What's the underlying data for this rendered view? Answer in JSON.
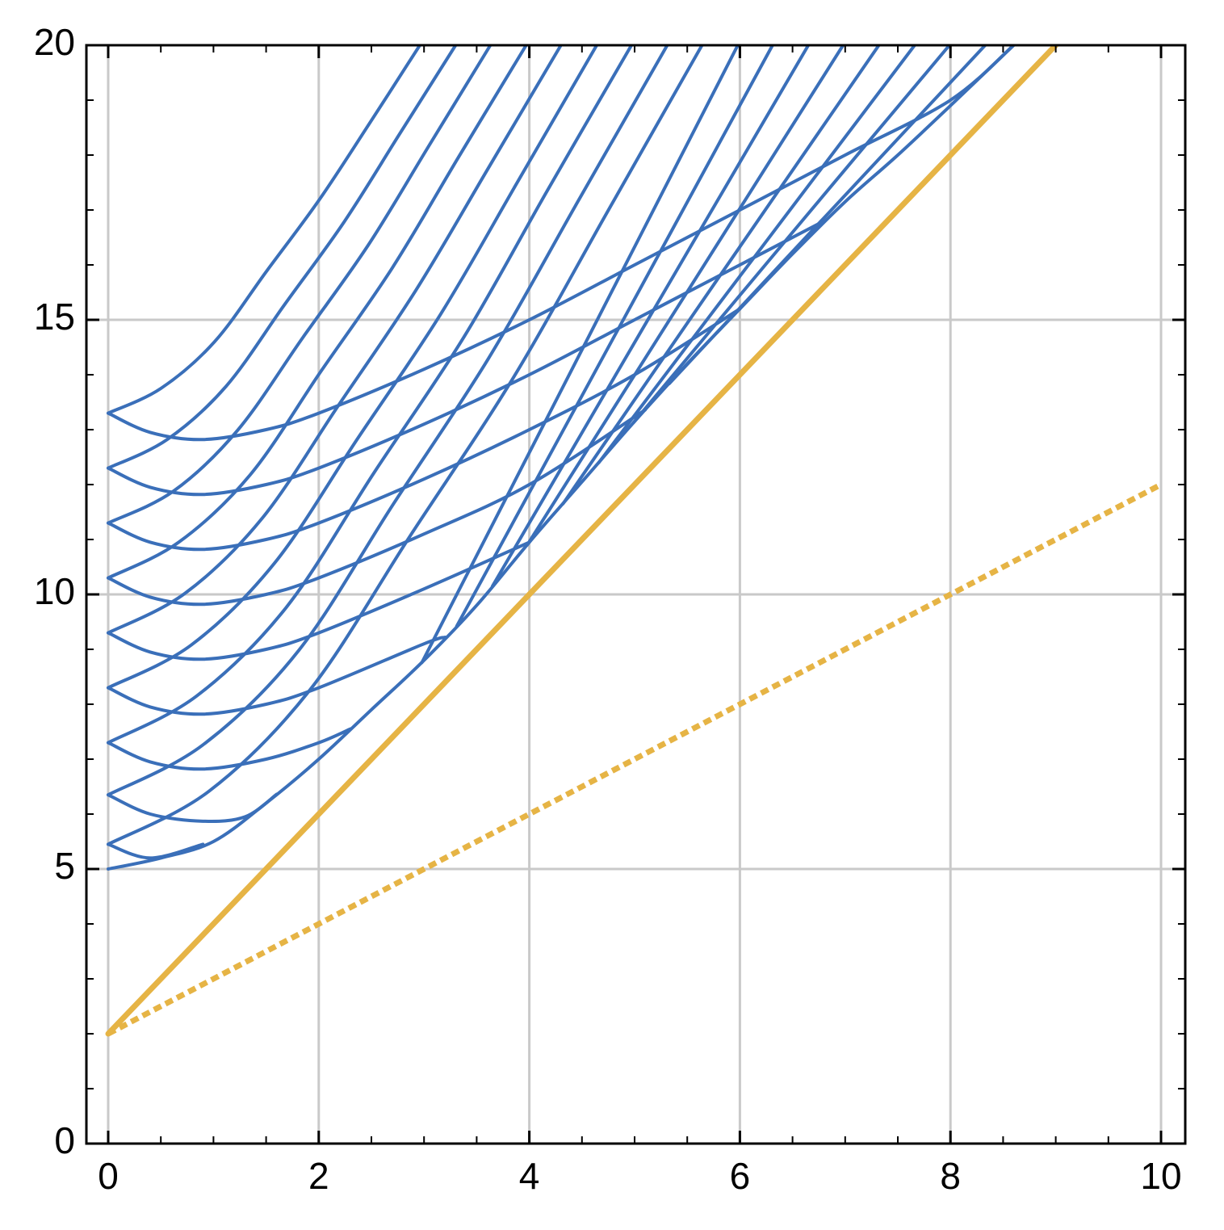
{
  "chart_data": {
    "type": "line",
    "xlim": [
      -0.207,
      10.23
    ],
    "ylim": [
      0,
      20
    ],
    "xticks": [
      0,
      2,
      4,
      6,
      8,
      10
    ],
    "yticks": [
      0,
      5,
      10,
      15,
      20
    ],
    "xminorticks": [
      0.5,
      1,
      1.5,
      2.5,
      3,
      3.5,
      4.5,
      5,
      5.5,
      6.5,
      7,
      7.5,
      8.5,
      9,
      9.5
    ],
    "yminorticks": [
      1,
      2,
      3,
      4,
      6,
      7,
      8,
      9,
      11,
      12,
      13,
      14,
      16,
      17,
      18,
      19
    ],
    "grid": true,
    "series": [
      {
        "color": "#3a6fb9",
        "x": [
          0,
          0.4,
          0.9,
          1.5,
          2,
          3,
          4,
          5,
          6,
          7,
          8,
          8.6
        ],
        "values": [
          13.3,
          12.95,
          12.82,
          13,
          13.3,
          14.1,
          15,
          16,
          17,
          18,
          19,
          20
        ]
      },
      {
        "color": "#3a6fb9",
        "x": [
          0,
          0.4,
          0.9,
          1.5,
          2,
          3,
          4,
          5,
          6,
          6.8
        ],
        "values": [
          12.3,
          11.95,
          11.82,
          12,
          12.3,
          13.1,
          14,
          15,
          16,
          16.8
        ]
      },
      {
        "color": "#3a6fb9",
        "x": [
          0,
          0.4,
          0.9,
          1.5,
          2,
          3,
          4,
          5,
          6
        ],
        "values": [
          11.3,
          10.95,
          10.82,
          11,
          11.3,
          12.1,
          13,
          14,
          15.2
        ]
      },
      {
        "color": "#3a6fb9",
        "x": [
          0,
          0.4,
          0.9,
          1.5,
          2,
          3,
          4,
          5.1
        ],
        "values": [
          10.3,
          9.95,
          9.82,
          10,
          10.3,
          11.1,
          12,
          13.36
        ]
      },
      {
        "color": "#3a6fb9",
        "x": [
          0,
          0.4,
          0.9,
          1.5,
          2,
          3,
          4
        ],
        "values": [
          9.3,
          8.95,
          8.82,
          9,
          9.3,
          10.1,
          10.95
        ]
      },
      {
        "color": "#3a6fb9",
        "x": [
          0,
          0.4,
          0.9,
          1.5,
          2,
          3,
          3.2
        ],
        "values": [
          8.3,
          7.95,
          7.82,
          8,
          8.3,
          9.1,
          9.22
        ]
      },
      {
        "color": "#3a6fb9",
        "x": [
          0,
          0.4,
          0.9,
          1.5,
          2,
          2.3
        ],
        "values": [
          7.3,
          6.95,
          6.82,
          7,
          7.3,
          7.55
        ]
      },
      {
        "color": "#3a6fb9",
        "x": [
          0,
          0.4,
          0.9,
          1.3,
          1.6
        ],
        "values": [
          6.35,
          6.0,
          5.87,
          5.95,
          6.36
        ]
      },
      {
        "color": "#3a6fb9",
        "x": [
          0,
          0.4,
          0.9
        ],
        "values": [
          5.45,
          5.2,
          5.45
        ]
      },
      {
        "color": "#3a6fb9",
        "x": [
          0,
          0.5,
          1,
          1.5,
          2,
          2.5,
          3,
          3.5,
          4,
          4.5,
          5,
          5.5,
          6,
          6.5,
          7,
          7.5,
          8,
          8.6
        ],
        "values": [
          5,
          5.2,
          5.5,
          6.2,
          7,
          7.9,
          8.8,
          9.8,
          10.95,
          12.05,
          13.15,
          14.2,
          15.2,
          16.2,
          17.15,
          18,
          18.9,
          20
        ]
      },
      {
        "color": "#3a6fb9",
        "x": [
          0,
          0.5,
          1.01,
          1.51,
          2.01,
          2.49,
          2.96
        ],
        "values": [
          13.3,
          13.75,
          14.6,
          15.9,
          17.2,
          18.6,
          20
        ]
      },
      {
        "color": "#3a6fb9",
        "x": [
          0,
          0.56,
          1.12,
          1.68,
          2.24,
          2.77,
          3.3
        ],
        "values": [
          12.3,
          12.82,
          13.79,
          15.29,
          16.78,
          18.39,
          20
        ]
      },
      {
        "color": "#3a6fb9",
        "x": [
          0,
          0.62,
          1.23,
          1.85,
          2.47,
          3.05,
          3.63
        ],
        "values": [
          11.3,
          11.88,
          12.99,
          14.68,
          16.36,
          18.18,
          20
        ]
      },
      {
        "color": "#3a6fb9",
        "x": [
          0,
          0.67,
          1.35,
          2.02,
          2.7,
          3.33,
          3.97
        ],
        "values": [
          10.3,
          10.95,
          12.18,
          14.06,
          15.95,
          17.97,
          20
        ]
      },
      {
        "color": "#3a6fb9",
        "x": [
          0,
          0.73,
          1.46,
          2.19,
          2.92,
          3.61,
          4.3
        ],
        "values": [
          9.3,
          10.02,
          11.38,
          13.45,
          15.53,
          17.76,
          20
        ]
      },
      {
        "color": "#3a6fb9",
        "x": [
          0,
          0.79,
          1.58,
          2.37,
          3.16,
          3.9,
          4.64
        ],
        "values": [
          8.3,
          9.08,
          10.57,
          12.84,
          15.11,
          17.55,
          20
        ]
      },
      {
        "color": "#3a6fb9",
        "x": [
          0,
          0.84,
          1.69,
          2.53,
          3.38,
          4.17,
          4.97
        ],
        "values": [
          7.3,
          8.15,
          9.76,
          12.23,
          14.69,
          17.35,
          20
        ]
      },
      {
        "color": "#3a6fb9",
        "x": [
          0,
          0.9,
          1.81,
          2.71,
          3.61,
          4.46,
          5.31
        ],
        "values": [
          6.35,
          7.26,
          8.98,
          11.65,
          14.29,
          17.15,
          20
        ]
      },
      {
        "color": "#3a6fb9",
        "x": [
          0,
          0.96,
          1.92,
          2.88,
          3.84,
          4.74,
          5.64
        ],
        "values": [
          5.45,
          6.42,
          8.27,
          11.1,
          13.92,
          16.96,
          20
        ]
      },
      {
        "color": "#3a6fb9",
        "x": [
          2.98,
          4.48,
          5.98
        ],
        "values": [
          8.76,
          14.38,
          20
        ]
      },
      {
        "color": "#3a6fb9",
        "x": [
          3.31,
          4.81,
          6.31
        ],
        "values": [
          9.42,
          14.71,
          20
        ]
      },
      {
        "color": "#3a6fb9",
        "x": [
          3.65,
          5.15,
          6.65
        ],
        "values": [
          10.15,
          15.08,
          20
        ]
      },
      {
        "color": "#3a6fb9",
        "x": [
          3.98,
          5.48,
          6.98
        ],
        "values": [
          10.9,
          15.45,
          20
        ]
      },
      {
        "color": "#3a6fb9",
        "x": [
          4.32,
          5.82,
          7.32
        ],
        "values": [
          11.65,
          15.83,
          20
        ]
      },
      {
        "color": "#3a6fb9",
        "x": [
          4.66,
          6.16,
          7.66
        ],
        "values": [
          12.4,
          16.2,
          20
        ]
      },
      {
        "color": "#3a6fb9",
        "x": [
          4.99,
          6.49,
          7.99
        ],
        "values": [
          13.13,
          16.57,
          20
        ]
      },
      {
        "color": "#3a6fb9",
        "x": [
          5.33,
          6.83,
          8.33
        ],
        "values": [
          13.84,
          16.92,
          20
        ]
      },
      {
        "color": "#e6b445",
        "x": [
          0,
          9
        ],
        "values": [
          2,
          20
        ],
        "width": 7
      },
      {
        "color": "#e6b445",
        "x": [
          0,
          10
        ],
        "values": [
          2,
          12
        ],
        "width": 7,
        "dotted": true
      }
    ]
  }
}
